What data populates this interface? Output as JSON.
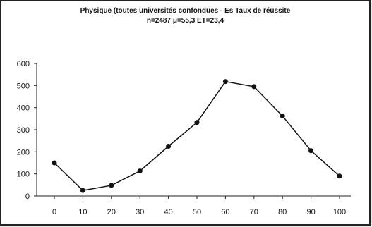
{
  "chart_data": {
    "type": "line",
    "title": "Physique (toutes universités confondues - Es Taux de réussite",
    "subtitle": "n=2487 μ=55,3 ET=23,4",
    "xlabel": "",
    "ylabel": "",
    "x": [
      0,
      10,
      20,
      30,
      40,
      50,
      60,
      70,
      80,
      90,
      100
    ],
    "x_tick_labels": [
      "0",
      "10",
      "20",
      "30",
      "40",
      "50",
      "60",
      "70",
      "80",
      "90",
      "100"
    ],
    "y_tick_labels": [
      "0",
      "100",
      "200",
      "300",
      "400",
      "500",
      "600"
    ],
    "series": [
      {
        "values": [
          150,
          25,
          48,
          113,
          225,
          333,
          518,
          495,
          362,
          205,
          90
        ]
      }
    ],
    "ylim": [
      0,
      600
    ],
    "grid": false,
    "legend": "none",
    "colors": {
      "line": "#111111",
      "marker": "#111111",
      "axis": "#222222"
    }
  }
}
